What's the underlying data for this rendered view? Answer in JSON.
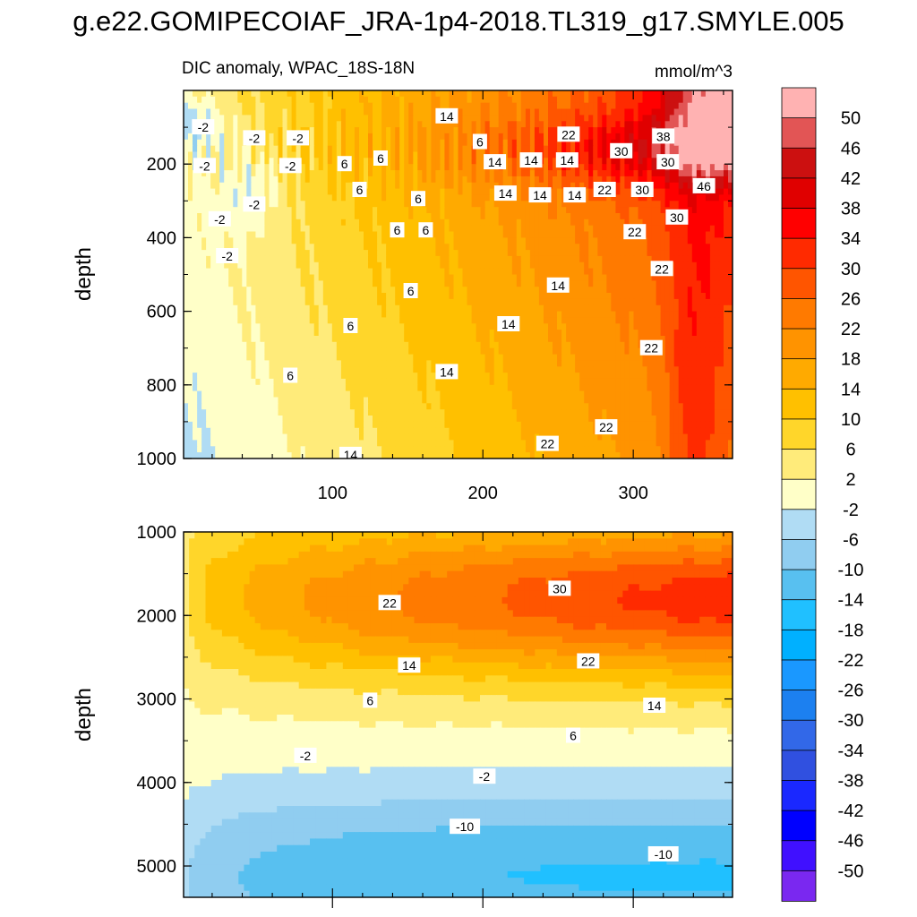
{
  "title": "g.e22.GOMIPECOIAF_JRA-1p4-2018.TL319_g17.SMYLE.005",
  "chart_data": [
    {
      "type": "heatmap",
      "name": "upper-panel",
      "subtitle_left": "DIC anomaly, WPAC_18S-18N",
      "subtitle_right": "mmol/m^3",
      "ylabel": "depth",
      "xlabel": "",
      "xlim": [
        1,
        366
      ],
      "ylim": [
        0,
        1000
      ],
      "y_reversed": true,
      "xticks": [
        "100",
        "200",
        "300"
      ],
      "xtick_values": [
        100,
        200,
        300
      ],
      "yticks": [
        "200",
        "400",
        "600",
        "800",
        "1000"
      ],
      "ytick_values": [
        200,
        400,
        600,
        800,
        1000
      ],
      "contour_labels": [
        {
          "text": "-2",
          "x": 14,
          "y": 100
        },
        {
          "text": "-2",
          "x": 48,
          "y": 130
        },
        {
          "text": "-2",
          "x": 77,
          "y": 130
        },
        {
          "text": "-2",
          "x": 15,
          "y": 205
        },
        {
          "text": "-2",
          "x": 72,
          "y": 205
        },
        {
          "text": "-2",
          "x": 48,
          "y": 310
        },
        {
          "text": "-2",
          "x": 25,
          "y": 350
        },
        {
          "text": "-2",
          "x": 30,
          "y": 450
        },
        {
          "text": "14",
          "x": 176,
          "y": 70
        },
        {
          "text": "6",
          "x": 198,
          "y": 140
        },
        {
          "text": "22",
          "x": 257,
          "y": 120
        },
        {
          "text": "38",
          "x": 320,
          "y": 125
        },
        {
          "text": "6",
          "x": 108,
          "y": 200
        },
        {
          "text": "6",
          "x": 132,
          "y": 185
        },
        {
          "text": "14",
          "x": 208,
          "y": 195
        },
        {
          "text": "14",
          "x": 232,
          "y": 190
        },
        {
          "text": "14",
          "x": 256,
          "y": 190
        },
        {
          "text": "30",
          "x": 292,
          "y": 165
        },
        {
          "text": "30",
          "x": 323,
          "y": 195
        },
        {
          "text": "6",
          "x": 118,
          "y": 270
        },
        {
          "text": "6",
          "x": 157,
          "y": 295
        },
        {
          "text": "14",
          "x": 215,
          "y": 280
        },
        {
          "text": "14",
          "x": 238,
          "y": 285
        },
        {
          "text": "14",
          "x": 261,
          "y": 285
        },
        {
          "text": "22",
          "x": 281,
          "y": 270
        },
        {
          "text": "30",
          "x": 306,
          "y": 270
        },
        {
          "text": "46",
          "x": 347,
          "y": 260
        },
        {
          "text": "6",
          "x": 143,
          "y": 380
        },
        {
          "text": "6",
          "x": 162,
          "y": 380
        },
        {
          "text": "22",
          "x": 301,
          "y": 385
        },
        {
          "text": "30",
          "x": 329,
          "y": 345
        },
        {
          "text": "22",
          "x": 319,
          "y": 485
        },
        {
          "text": "6",
          "x": 152,
          "y": 545
        },
        {
          "text": "14",
          "x": 250,
          "y": 530
        },
        {
          "text": "6",
          "x": 112,
          "y": 640
        },
        {
          "text": "14",
          "x": 217,
          "y": 635
        },
        {
          "text": "22",
          "x": 312,
          "y": 700
        },
        {
          "text": "6",
          "x": 72,
          "y": 775
        },
        {
          "text": "14",
          "x": 176,
          "y": 765
        },
        {
          "text": "22",
          "x": 282,
          "y": 915
        },
        {
          "text": "14",
          "x": 112,
          "y": 990
        },
        {
          "text": "22",
          "x": 243,
          "y": 960
        }
      ]
    },
    {
      "type": "heatmap",
      "name": "lower-panel",
      "ylabel": "depth",
      "xlabel": "",
      "xlim": [
        1,
        366
      ],
      "ylim": [
        1000,
        5375
      ],
      "y_reversed": true,
      "yticks": [
        "1000",
        "2000",
        "3000",
        "4000",
        "5000"
      ],
      "ytick_values": [
        1000,
        2000,
        3000,
        4000,
        5000
      ],
      "contour_labels": [
        {
          "text": "22",
          "x": 138,
          "y": 1850
        },
        {
          "text": "30",
          "x": 251,
          "y": 1680
        },
        {
          "text": "14",
          "x": 151,
          "y": 2600
        },
        {
          "text": "22",
          "x": 270,
          "y": 2550
        },
        {
          "text": "6",
          "x": 125,
          "y": 3020
        },
        {
          "text": "14",
          "x": 314,
          "y": 3080
        },
        {
          "text": "6",
          "x": 260,
          "y": 3440
        },
        {
          "text": "-2",
          "x": 82,
          "y": 3680
        },
        {
          "text": "-2",
          "x": 201,
          "y": 3930
        },
        {
          "text": "-10",
          "x": 188,
          "y": 4530
        },
        {
          "text": "-10",
          "x": 320,
          "y": 4860
        }
      ]
    }
  ],
  "colorbar": {
    "labels": [
      "50",
      "46",
      "42",
      "38",
      "34",
      "30",
      "26",
      "22",
      "18",
      "14",
      "10",
      "6",
      "2",
      "-2",
      "-6",
      "-10",
      "-14",
      "-18",
      "-22",
      "-26",
      "-30",
      "-34",
      "-38",
      "-42",
      "-46",
      "-50"
    ],
    "colors": [
      "#ffb2b2",
      "#e25555",
      "#cc1010",
      "#e00000",
      "#ff0000",
      "#ff2a00",
      "#ff5500",
      "#ff7a00",
      "#ff9300",
      "#ffaa00",
      "#ffc000",
      "#ffd62a",
      "#ffeb7a",
      "#ffffc8",
      "#b0dcf4",
      "#90cdf0",
      "#58c0f0",
      "#20c0ff",
      "#00b0ff",
      "#1a98ff",
      "#1c80f0",
      "#3268e8",
      "#3050e0",
      "#1a28ff",
      "#0000ff",
      "#4010ff",
      "#7a28f0"
    ]
  }
}
